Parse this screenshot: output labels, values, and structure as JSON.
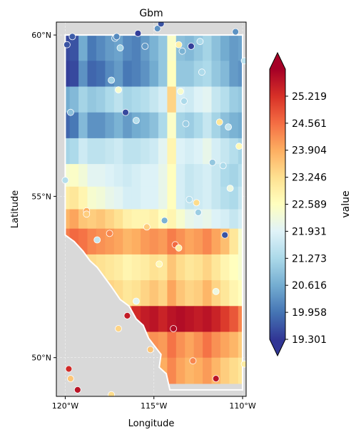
{
  "chart_data": {
    "type": "heatmap",
    "title": "Gbm",
    "xlabel": "Longitude",
    "ylabel": "Latitude",
    "xlim": [
      -120.5,
      -109.8
    ],
    "ylim": [
      48.8,
      60.4
    ],
    "x_ticks": [
      {
        "value": -120,
        "label": "120°W"
      },
      {
        "value": -115,
        "label": "115°W"
      },
      {
        "value": -110,
        "label": "110°W"
      }
    ],
    "y_ticks": [
      {
        "value": 50,
        "label": "50°N"
      },
      {
        "value": 55,
        "label": "55°N"
      },
      {
        "value": 60,
        "label": "60°N"
      }
    ],
    "colorbar": {
      "label": "value",
      "min": 19.301,
      "max": 25.877,
      "ticks": [
        "19.301",
        "19.958",
        "20.616",
        "21.273",
        "21.931",
        "22.589",
        "23.246",
        "23.904",
        "24.561",
        "25.219"
      ],
      "extend": "both",
      "colormap": "RdYlBu_r"
    },
    "grid": {
      "lon": [
        -120,
        -119.5,
        -119,
        -118.5,
        -118,
        -117.5,
        -117,
        -116.5,
        -116,
        -115.5,
        -115,
        -114.5,
        -114,
        -113.5,
        -113,
        -112.5,
        -112,
        -111.5,
        -111,
        -110.5,
        -110
      ],
      "lat_bands": [
        {
          "lat": [
            59.2,
            60.0
          ],
          "values": [
            19.5,
            19.6,
            20.6,
            20.0,
            20.2,
            20.4,
            20.5,
            20.2,
            20.1,
            20.4,
            20.7,
            21.0,
            22.5,
            20.9,
            20.8,
            21.0,
            21.2,
            20.9,
            20.6,
            20.4,
            20.5
          ]
        },
        {
          "lat": [
            58.4,
            59.2
          ],
          "values": [
            19.4,
            19.5,
            20.3,
            19.8,
            19.9,
            20.2,
            20.4,
            20.0,
            20.1,
            20.3,
            20.6,
            21.0,
            22.6,
            21.0,
            21.0,
            21.2,
            21.3,
            21.0,
            20.8,
            20.4,
            20.3
          ]
        },
        {
          "lat": [
            57.6,
            58.4
          ],
          "values": [
            20.6,
            20.8,
            21.2,
            21.0,
            21.1,
            21.3,
            21.5,
            21.2,
            21.3,
            21.4,
            21.6,
            21.8,
            23.4,
            21.8,
            21.7,
            21.9,
            22.0,
            21.6,
            21.4,
            21.1,
            21.0
          ]
        },
        {
          "lat": [
            56.8,
            57.6
          ],
          "values": [
            19.8,
            20.0,
            20.8,
            20.3,
            20.3,
            20.5,
            20.7,
            20.4,
            20.6,
            20.7,
            20.9,
            21.3,
            22.5,
            21.2,
            21.1,
            21.3,
            21.6,
            21.2,
            20.9,
            20.7,
            20.6
          ]
        },
        {
          "lat": [
            56.0,
            56.8
          ],
          "values": [
            21.2,
            21.3,
            21.7,
            21.5,
            21.5,
            21.6,
            21.7,
            21.5,
            21.5,
            21.6,
            21.7,
            22.0,
            22.8,
            21.9,
            21.8,
            21.9,
            22.1,
            21.8,
            21.6,
            21.4,
            21.2
          ]
        },
        {
          "lat": [
            55.3,
            56.0
          ],
          "values": [
            22.4,
            22.5,
            22.3,
            22.0,
            22.0,
            21.9,
            21.8,
            21.7,
            21.8,
            21.9,
            21.9,
            22.1,
            22.6,
            21.8,
            21.6,
            21.7,
            21.8,
            21.6,
            21.3,
            21.2,
            21.4
          ]
        },
        {
          "lat": [
            54.6,
            55.3
          ],
          "values": [
            23.0,
            23.1,
            22.8,
            22.4,
            22.3,
            22.1,
            22.0,
            21.8,
            21.8,
            21.9,
            21.9,
            22.1,
            22.6,
            21.8,
            21.6,
            21.7,
            21.8,
            21.6,
            21.4,
            21.3,
            21.6
          ]
        },
        {
          "lat": [
            54.0,
            54.6
          ],
          "values": [
            23.8,
            24.0,
            23.6,
            23.5,
            23.6,
            23.4,
            23.2,
            22.9,
            22.8,
            22.8,
            22.9,
            22.6,
            22.8,
            22.4,
            22.1,
            22.0,
            22.1,
            21.9,
            21.8,
            21.6,
            21.8
          ]
        },
        {
          "lat": [
            53.2,
            54.0
          ],
          "values": [
            24.4,
            24.6,
            24.5,
            24.3,
            24.2,
            24.1,
            24.0,
            23.8,
            23.9,
            24.1,
            24.2,
            24.1,
            24.4,
            24.2,
            24.0,
            24.1,
            24.3,
            24.0,
            23.7,
            23.1,
            22.4
          ]
        },
        {
          "lat": [
            52.4,
            53.2
          ],
          "values": [
            23.3,
            23.5,
            23.4,
            23.3,
            23.2,
            23.1,
            23.0,
            22.8,
            22.9,
            23.0,
            23.2,
            23.1,
            23.6,
            23.3,
            23.1,
            23.2,
            23.4,
            23.1,
            22.8,
            22.6,
            22.4
          ]
        },
        {
          "lat": [
            51.6,
            52.4
          ],
          "values": [
            23.7,
            23.8,
            23.7,
            23.6,
            23.5,
            23.4,
            23.3,
            23.1,
            23.2,
            23.4,
            23.6,
            23.4,
            24.0,
            23.6,
            23.4,
            23.5,
            23.8,
            23.4,
            23.1,
            22.8,
            22.6
          ]
        },
        {
          "lat": [
            50.8,
            51.6
          ],
          "values": [
            24.6,
            24.8,
            24.7,
            24.6,
            24.5,
            24.5,
            24.6,
            24.8,
            25.3,
            25.5,
            25.6,
            25.4,
            25.6,
            25.7,
            25.6,
            25.5,
            25.6,
            25.4,
            25.1,
            24.8,
            24.3
          ]
        },
        {
          "lat": [
            50.0,
            50.8
          ],
          "values": [
            23.9,
            24.0,
            23.9,
            23.8,
            23.8,
            23.7,
            23.6,
            23.6,
            23.8,
            24.0,
            24.2,
            24.1,
            24.5,
            24.2,
            24.0,
            24.2,
            24.5,
            24.2,
            24.0,
            23.8,
            23.5
          ]
        },
        {
          "lat": [
            49.2,
            50.0
          ],
          "values": [
            23.2,
            23.4,
            23.3,
            23.1,
            23.0,
            22.9,
            22.9,
            22.9,
            23.1,
            23.5,
            23.8,
            23.9,
            24.3,
            24.0,
            23.8,
            23.9,
            24.1,
            23.8,
            23.5,
            23.3,
            23.1
          ]
        }
      ]
    },
    "stations": [
      {
        "lon": -119.6,
        "lat": 59.95,
        "value": 19.7
      },
      {
        "lon": -119.9,
        "lat": 59.7,
        "value": 19.6
      },
      {
        "lon": -117.2,
        "lat": 59.9,
        "value": 20.5
      },
      {
        "lon": -117.1,
        "lat": 59.95,
        "value": 20.2
      },
      {
        "lon": -116.9,
        "lat": 59.6,
        "value": 21.2
      },
      {
        "lon": -115.9,
        "lat": 60.05,
        "value": 19.4
      },
      {
        "lon": -115.5,
        "lat": 59.65,
        "value": 20.4
      },
      {
        "lon": -114.8,
        "lat": 60.2,
        "value": 20.3
      },
      {
        "lon": -114.6,
        "lat": 60.35,
        "value": 19.6
      },
      {
        "lon": -113.6,
        "lat": 59.7,
        "value": 22.9
      },
      {
        "lon": -113.4,
        "lat": 59.5,
        "value": 20.7
      },
      {
        "lon": -112.9,
        "lat": 59.65,
        "value": 19.4
      },
      {
        "lon": -112.4,
        "lat": 59.8,
        "value": 21.3
      },
      {
        "lon": -110.4,
        "lat": 60.1,
        "value": 20.3
      },
      {
        "lon": -109.9,
        "lat": 59.2,
        "value": 21.5
      },
      {
        "lon": -112.3,
        "lat": 58.85,
        "value": 21.3
      },
      {
        "lon": -117.4,
        "lat": 58.6,
        "value": 21.2
      },
      {
        "lon": -117.0,
        "lat": 58.3,
        "value": 22.4
      },
      {
        "lon": -113.5,
        "lat": 58.25,
        "value": 22.4
      },
      {
        "lon": -113.3,
        "lat": 57.95,
        "value": 21.3
      },
      {
        "lon": -119.7,
        "lat": 57.6,
        "value": 20.9
      },
      {
        "lon": -116.6,
        "lat": 57.6,
        "value": 19.5
      },
      {
        "lon": -116.0,
        "lat": 57.35,
        "value": 21.4
      },
      {
        "lon": -113.2,
        "lat": 57.25,
        "value": 21.1
      },
      {
        "lon": -111.3,
        "lat": 57.3,
        "value": 23.1
      },
      {
        "lon": -110.8,
        "lat": 57.15,
        "value": 21.6
      },
      {
        "lon": -110.2,
        "lat": 56.55,
        "value": 22.7
      },
      {
        "lon": -111.7,
        "lat": 56.05,
        "value": 21.0
      },
      {
        "lon": -111.1,
        "lat": 55.95,
        "value": 21.3
      },
      {
        "lon": -120.0,
        "lat": 55.5,
        "value": 21.4
      },
      {
        "lon": -113.0,
        "lat": 54.9,
        "value": 21.4
      },
      {
        "lon": -112.6,
        "lat": 54.8,
        "value": 23.3
      },
      {
        "lon": -110.7,
        "lat": 55.25,
        "value": 22.2
      },
      {
        "lon": -118.8,
        "lat": 54.55,
        "value": 23.9
      },
      {
        "lon": -118.8,
        "lat": 54.45,
        "value": 23.5
      },
      {
        "lon": -112.5,
        "lat": 54.5,
        "value": 21.1
      },
      {
        "lon": -114.4,
        "lat": 54.25,
        "value": 20.7
      },
      {
        "lon": -115.4,
        "lat": 54.05,
        "value": 23.5
      },
      {
        "lon": -111.0,
        "lat": 53.8,
        "value": 19.6
      },
      {
        "lon": -117.5,
        "lat": 53.85,
        "value": 24.3
      },
      {
        "lon": -118.2,
        "lat": 53.65,
        "value": 21.6
      },
      {
        "lon": -113.8,
        "lat": 53.5,
        "value": 24.6
      },
      {
        "lon": -113.6,
        "lat": 53.4,
        "value": 23.0
      },
      {
        "lon": -114.7,
        "lat": 52.9,
        "value": 22.7
      },
      {
        "lon": -111.5,
        "lat": 52.05,
        "value": 22.2
      },
      {
        "lon": -116.0,
        "lat": 51.75,
        "value": 22.0
      },
      {
        "lon": -116.5,
        "lat": 51.3,
        "value": 25.5
      },
      {
        "lon": -113.9,
        "lat": 50.9,
        "value": 25.7
      },
      {
        "lon": -117.0,
        "lat": 50.9,
        "value": 23.4
      },
      {
        "lon": -115.2,
        "lat": 50.25,
        "value": 23.6
      },
      {
        "lon": -112.8,
        "lat": 49.9,
        "value": 24.3
      },
      {
        "lon": -109.9,
        "lat": 49.8,
        "value": 23.0
      },
      {
        "lon": -119.8,
        "lat": 49.65,
        "value": 25.3
      },
      {
        "lon": -119.7,
        "lat": 49.35,
        "value": 23.6
      },
      {
        "lon": -111.5,
        "lat": 49.35,
        "value": 25.6
      },
      {
        "lon": -119.3,
        "lat": 49.0,
        "value": 25.6
      },
      {
        "lon": -117.4,
        "lat": 48.85,
        "value": 23.3
      }
    ]
  }
}
